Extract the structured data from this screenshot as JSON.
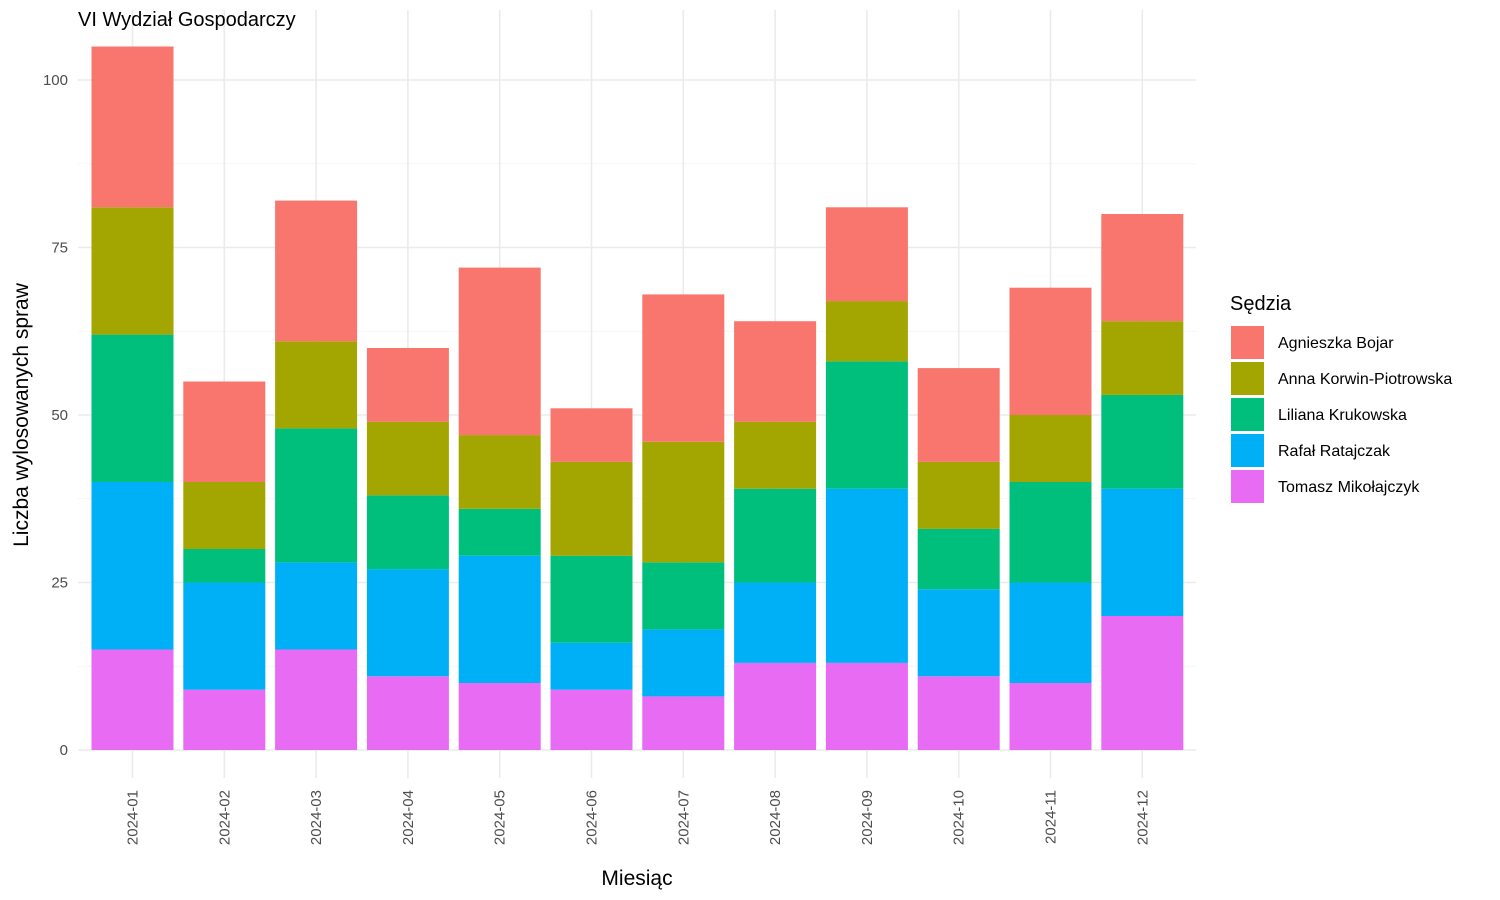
{
  "chart_data": {
    "type": "bar",
    "stacked": true,
    "title": "VI Wydział Gospodarczy",
    "xlabel": "Miesiąc",
    "ylabel": "Liczba wylosowanych spraw",
    "ylim": [
      0,
      105
    ],
    "yticks": [
      0,
      25,
      50,
      75,
      100
    ],
    "grid": true,
    "legend": {
      "title": "Sędzia",
      "placement": "right"
    },
    "categories": [
      "2024-01",
      "2024-02",
      "2024-03",
      "2024-04",
      "2024-05",
      "2024-06",
      "2024-07",
      "2024-08",
      "2024-09",
      "2024-10",
      "2024-11",
      "2024-12"
    ],
    "series": [
      {
        "name": "Agnieszka Bojar",
        "color": "#F8766D",
        "values": [
          24,
          15,
          21,
          11,
          25,
          8,
          22,
          15,
          14,
          14,
          19,
          16
        ]
      },
      {
        "name": "Anna Korwin-Piotrowska",
        "color": "#A3A500",
        "values": [
          19,
          10,
          13,
          11,
          11,
          14,
          18,
          10,
          9,
          10,
          10,
          11
        ]
      },
      {
        "name": "Liliana Krukowska",
        "color": "#00BF7D",
        "values": [
          22,
          5,
          20,
          11,
          7,
          13,
          10,
          14,
          19,
          9,
          15,
          14
        ]
      },
      {
        "name": "Rafał Ratajczak",
        "color": "#00B0F6",
        "values": [
          25,
          16,
          13,
          16,
          19,
          7,
          10,
          12,
          26,
          13,
          15,
          19
        ]
      },
      {
        "name": "Tomasz Mikołajczyk",
        "color": "#E76BF3",
        "values": [
          15,
          9,
          15,
          11,
          10,
          9,
          8,
          13,
          13,
          11,
          10,
          20
        ]
      }
    ]
  }
}
